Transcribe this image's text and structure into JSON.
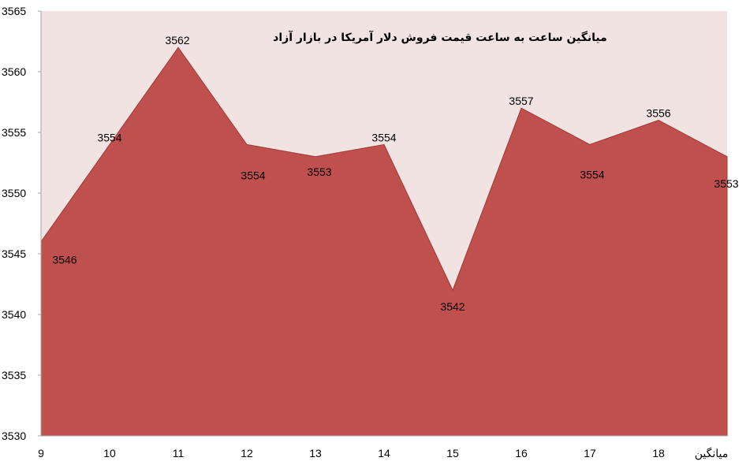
{
  "chart_data": {
    "type": "area",
    "title": "میانگین ساعت به ساعت قیمت فروش دلار آمریکا در بازار آزاد",
    "categories": [
      "9",
      "10",
      "11",
      "12",
      "13",
      "14",
      "15",
      "16",
      "17",
      "18",
      "میانگین"
    ],
    "values": [
      3546,
      3554,
      3562,
      3554,
      3553,
      3554,
      3542,
      3557,
      3554,
      3556,
      3553
    ],
    "data_labels": [
      "3546",
      "3554",
      "3562",
      "3554",
      "3553",
      "3554",
      "3542",
      "3557",
      "3554",
      "3556",
      "3553"
    ],
    "ylim": [
      3530,
      3565
    ],
    "yticks": [
      "3530",
      "3535",
      "3540",
      "3545",
      "3550",
      "3555",
      "3560",
      "3565"
    ],
    "xlabel": "",
    "ylabel": "",
    "grid": false,
    "legend": "none",
    "colors": {
      "area_fill": "#c0504d",
      "area_stroke": "#9e3b38",
      "plot_background": "#f2e3e3",
      "axis": "#a6a6a6"
    }
  }
}
